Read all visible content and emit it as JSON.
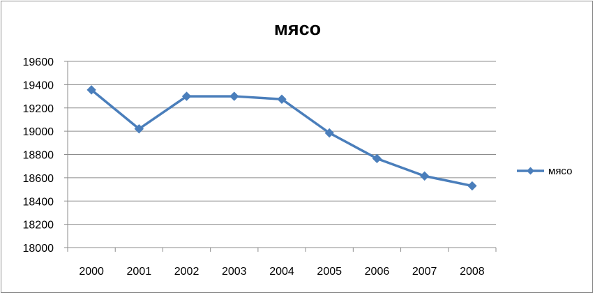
{
  "chart_data": {
    "type": "line",
    "title": "мясо",
    "xlabel": "",
    "ylabel": "",
    "categories": [
      "2000",
      "2001",
      "2002",
      "2003",
      "2004",
      "2005",
      "2006",
      "2007",
      "2008"
    ],
    "series": [
      {
        "name": "мясо",
        "values": [
          19355,
          19020,
          19300,
          19300,
          19275,
          18985,
          18765,
          18615,
          18530
        ],
        "color": "#4a7ebb"
      }
    ],
    "ylim": [
      18000,
      19600
    ],
    "yticks": [
      18000,
      18200,
      18400,
      18600,
      18800,
      19000,
      19200,
      19400,
      19600
    ],
    "grid": true,
    "legend": "right",
    "marker": "diamond"
  }
}
